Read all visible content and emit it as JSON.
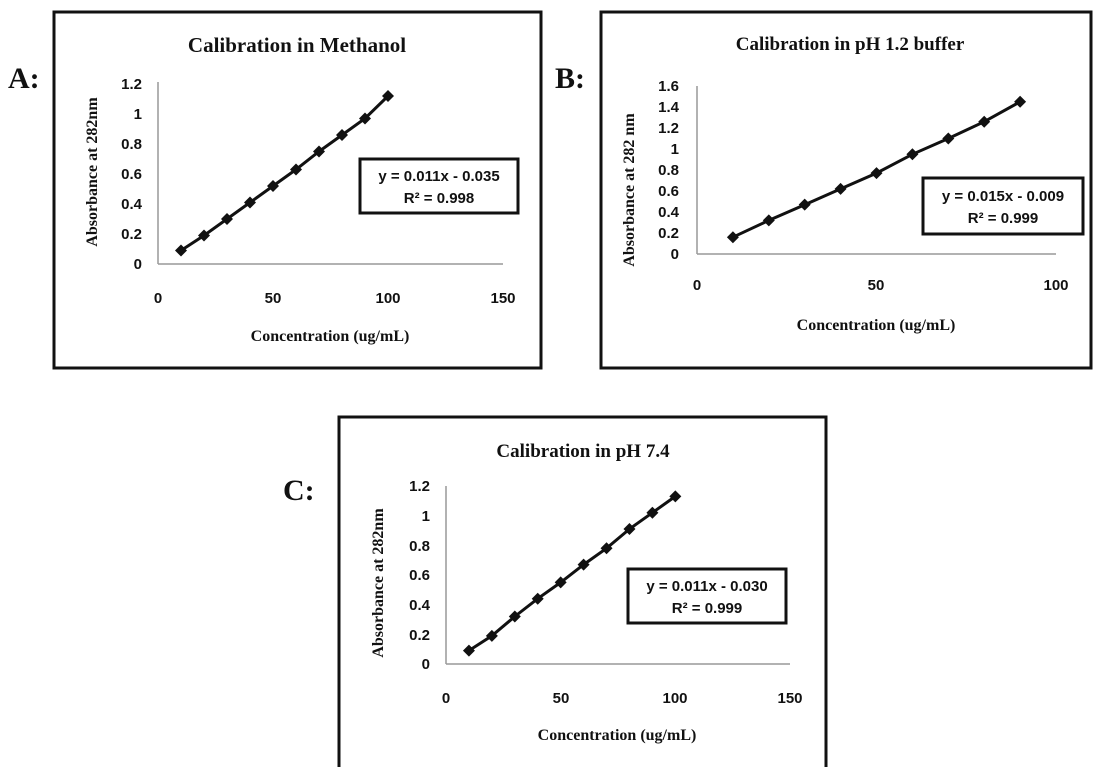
{
  "panel_labels": [
    "A:",
    "B:",
    "C:"
  ],
  "chart_data": [
    {
      "type": "line",
      "panel": "A:",
      "title": "Calibration in Methanol",
      "xlabel": "Concentration (ug/mL)",
      "ylabel": "Absorbance at 282nm",
      "xlim": [
        0,
        150
      ],
      "ylim": [
        0,
        1.2
      ],
      "xticks": [
        "0",
        "50",
        "100",
        "150"
      ],
      "yticks": [
        "0",
        "0.2",
        "0.4",
        "0.6",
        "0.8",
        "1",
        "1.2"
      ],
      "grid": false,
      "marker": "diamond",
      "x": [
        10,
        20,
        30,
        40,
        50,
        60,
        70,
        80,
        90,
        100
      ],
      "y": [
        0.09,
        0.19,
        0.3,
        0.41,
        0.52,
        0.63,
        0.75,
        0.86,
        0.97,
        1.12
      ],
      "equation": "y = 0.011x - 0.035",
      "r2": "R² = 0.998"
    },
    {
      "type": "line",
      "panel": "B:",
      "title": "Calibration in pH 1.2 buffer",
      "xlabel": "Concentration (ug/mL)",
      "ylabel": "Absorbance at 282 nm",
      "xlim": [
        0,
        100
      ],
      "ylim": [
        0,
        1.6
      ],
      "xticks": [
        "0",
        "50",
        "100"
      ],
      "yticks": [
        "0",
        "0.2",
        "0.4",
        "0.6",
        "0.8",
        "1",
        "1.2",
        "1.4",
        "1.6"
      ],
      "grid": false,
      "marker": "diamond",
      "x": [
        10,
        20,
        30,
        40,
        50,
        60,
        70,
        80,
        90
      ],
      "y": [
        0.16,
        0.32,
        0.47,
        0.62,
        0.77,
        0.95,
        1.1,
        1.26,
        1.45
      ],
      "equation": "y = 0.015x - 0.009",
      "r2": "R² = 0.999"
    },
    {
      "type": "line",
      "panel": "C:",
      "title": "Calibration in pH 7.4",
      "xlabel": "Concentration (ug/mL)",
      "ylabel": "Absorbance at 282nm",
      "xlim": [
        0,
        150
      ],
      "ylim": [
        0,
        1.2
      ],
      "xticks": [
        "0",
        "50",
        "100",
        "150"
      ],
      "yticks": [
        "0",
        "0.2",
        "0.4",
        "0.6",
        "0.8",
        "1",
        "1.2"
      ],
      "grid": false,
      "marker": "diamond",
      "x": [
        10,
        20,
        30,
        40,
        50,
        60,
        70,
        80,
        90,
        100
      ],
      "y": [
        0.09,
        0.19,
        0.32,
        0.44,
        0.55,
        0.67,
        0.78,
        0.91,
        1.02,
        1.13
      ],
      "equation": "y = 0.011x - 0.030",
      "r2": "R² = 0.999"
    }
  ]
}
